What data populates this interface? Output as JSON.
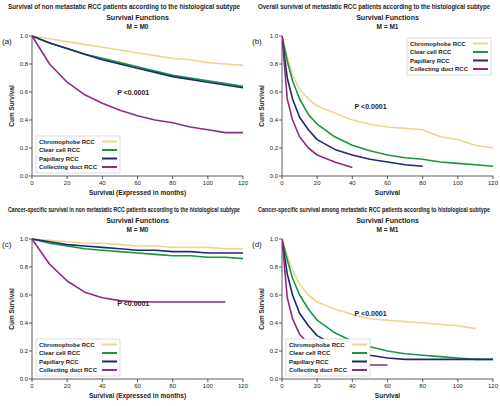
{
  "chart_data": [
    {
      "type": "line",
      "panel_label": "(a)",
      "title": "Survival of non metastatic RCC patients according to the histological subtype",
      "subtitle": "Survival Functions",
      "strata_label": "M = M0",
      "annotation": "P <0.0001",
      "x_label": "Survival (Expressed in months)",
      "y_label": "Cum Survival",
      "x": [
        0,
        10,
        20,
        30,
        40,
        50,
        60,
        70,
        80,
        90,
        100,
        110,
        120
      ],
      "series": [
        {
          "name": "Chromophobe RCC",
          "color": "#efd593",
          "values": [
            1.0,
            0.98,
            0.96,
            0.94,
            0.92,
            0.9,
            0.88,
            0.86,
            0.84,
            0.83,
            0.81,
            0.8,
            0.79
          ]
        },
        {
          "name": "Clear cell RCC",
          "color": "#1a9641",
          "values": [
            1.0,
            0.95,
            0.91,
            0.87,
            0.84,
            0.81,
            0.78,
            0.75,
            0.72,
            0.7,
            0.68,
            0.66,
            0.64
          ]
        },
        {
          "name": "Papillary RCC",
          "color": "#1c2a6e",
          "values": [
            1.0,
            0.95,
            0.91,
            0.87,
            0.83,
            0.8,
            0.77,
            0.74,
            0.71,
            0.69,
            0.67,
            0.65,
            0.63
          ]
        },
        {
          "name": "Collecting duct RCC",
          "color": "#8e2c80",
          "values": [
            1.0,
            0.8,
            0.67,
            0.58,
            0.52,
            0.47,
            0.43,
            0.4,
            0.38,
            0.35,
            0.33,
            0.31,
            0.31
          ]
        }
      ],
      "xlim": [
        0,
        120
      ],
      "xticks": [
        0,
        20,
        40,
        60,
        80,
        100,
        120
      ],
      "ylim": [
        0,
        1.0
      ],
      "yticks": [
        {
          "value": 0,
          "label": "0.0"
        },
        0.2,
        0.4,
        0.6,
        0.8,
        {
          "value": 1.0,
          "label": "1.0"
        }
      ],
      "grid": false,
      "legend": "lower left"
    },
    {
      "type": "line",
      "panel_label": "(b)",
      "title": "Overall survival of metastatic RCC patients according to the histological subtype",
      "subtitle": "Survival Functions",
      "strata_label": "M = M1",
      "annotation": "P <0.0001",
      "x_label": "Survival",
      "y_label": "Cum Survival",
      "x": [
        0,
        3,
        6,
        10,
        15,
        20,
        30,
        40,
        50,
        60,
        70,
        80,
        90,
        100,
        110,
        120
      ],
      "series": [
        {
          "name": "Chromophobe RCC",
          "color": "#efd593",
          "values": [
            1.0,
            0.85,
            0.72,
            0.62,
            0.55,
            0.5,
            0.45,
            0.4,
            0.37,
            0.35,
            0.34,
            0.33,
            0.28,
            0.26,
            0.22,
            0.2
          ]
        },
        {
          "name": "Clear cell RCC",
          "color": "#1a9641",
          "values": [
            1.0,
            0.82,
            0.68,
            0.55,
            0.44,
            0.37,
            0.28,
            0.22,
            0.18,
            0.15,
            0.13,
            0.12,
            0.1,
            0.09,
            0.08,
            0.07
          ]
        },
        {
          "name": "Papillary RCC",
          "color": "#1c2a6e",
          "values": [
            1.0,
            0.7,
            0.55,
            0.42,
            0.33,
            0.26,
            0.19,
            0.15,
            0.12,
            0.1,
            0.08,
            0.07,
            null,
            null,
            null,
            null
          ]
        },
        {
          "name": "Collecting duct RCC",
          "color": "#8e2c80",
          "values": [
            1.0,
            0.55,
            0.4,
            0.28,
            0.2,
            0.15,
            0.1,
            0.06,
            null,
            null,
            null,
            null,
            null,
            null,
            null,
            null
          ]
        }
      ],
      "xlim": [
        0,
        120
      ],
      "xticks": [
        0,
        20,
        40,
        60,
        80,
        100,
        120
      ],
      "ylim": [
        0,
        1.0
      ],
      "yticks": [
        {
          "value": 0,
          "label": "0.0"
        },
        0.2,
        0.4,
        0.6,
        0.8,
        {
          "value": 1.0,
          "label": "1.0"
        }
      ],
      "grid": false,
      "legend": "upper right"
    },
    {
      "type": "line",
      "panel_label": "(c)",
      "title": "Cancer-specific survival in non metastatic RCC patients according to the histological subtype",
      "subtitle": "Survival Functions",
      "strata_label": "M = M0",
      "annotation": "P <0.0001",
      "x_label": "Survival (Expressed in months)",
      "y_label": "Cum Survival",
      "x": [
        0,
        10,
        20,
        30,
        40,
        50,
        60,
        70,
        80,
        90,
        100,
        110,
        120
      ],
      "series": [
        {
          "name": "Chromophobe RCC",
          "color": "#efd593",
          "values": [
            1.0,
            0.99,
            0.98,
            0.97,
            0.97,
            0.96,
            0.95,
            0.95,
            0.94,
            0.94,
            0.94,
            0.93,
            0.93
          ]
        },
        {
          "name": "Clear cell RCC",
          "color": "#1a9641",
          "values": [
            1.0,
            0.97,
            0.95,
            0.93,
            0.92,
            0.91,
            0.9,
            0.89,
            0.88,
            0.88,
            0.87,
            0.87,
            0.86
          ]
        },
        {
          "name": "Papillary RCC",
          "color": "#1c2a6e",
          "values": [
            1.0,
            0.98,
            0.96,
            0.95,
            0.94,
            0.93,
            0.92,
            0.92,
            0.91,
            0.91,
            0.9,
            0.9,
            0.9
          ]
        },
        {
          "name": "Collecting duct RCC",
          "color": "#8e2c80",
          "values": [
            1.0,
            0.82,
            0.7,
            0.62,
            0.58,
            0.56,
            0.55,
            0.55,
            0.55,
            0.55,
            0.55,
            0.55,
            null
          ]
        }
      ],
      "xlim": [
        0,
        120
      ],
      "xticks": [
        0,
        20,
        40,
        60,
        80,
        100,
        120
      ],
      "ylim": [
        0,
        1.0
      ],
      "yticks": [
        {
          "value": 0,
          "label": "0.0"
        },
        0.2,
        0.4,
        0.6,
        0.8,
        {
          "value": 1.0,
          "label": "1.0"
        }
      ],
      "grid": false,
      "legend": "lower left"
    },
    {
      "type": "line",
      "panel_label": "(d)",
      "title": "Cancer-specific survival among metastatic RCC patients according to histological subtype",
      "subtitle": "Survival Functions",
      "strata_label": "M = M1",
      "annotation": "P <0.0001",
      "x_label": "Survival",
      "y_label": "Cum Survival",
      "x": [
        0,
        3,
        6,
        10,
        15,
        20,
        30,
        40,
        50,
        60,
        70,
        80,
        90,
        100,
        110,
        120
      ],
      "series": [
        {
          "name": "Chromophobe RCC",
          "color": "#efd593",
          "values": [
            1.0,
            0.88,
            0.78,
            0.68,
            0.6,
            0.55,
            0.5,
            0.46,
            0.43,
            0.42,
            0.41,
            0.4,
            0.39,
            0.38,
            0.36,
            null
          ]
        },
        {
          "name": "Clear cell RCC",
          "color": "#1a9641",
          "values": [
            1.0,
            0.85,
            0.72,
            0.6,
            0.5,
            0.42,
            0.33,
            0.27,
            0.23,
            0.2,
            0.18,
            0.17,
            0.16,
            0.15,
            0.14,
            0.14
          ]
        },
        {
          "name": "Papillary RCC",
          "color": "#1c2a6e",
          "values": [
            1.0,
            0.75,
            0.6,
            0.47,
            0.38,
            0.31,
            0.24,
            0.2,
            0.17,
            0.15,
            0.14,
            0.14,
            0.14,
            0.14,
            0.14,
            0.14
          ]
        },
        {
          "name": "Collecting duct RCC",
          "color": "#8e2c80",
          "values": [
            1.0,
            0.58,
            0.43,
            0.32,
            0.25,
            0.2,
            0.14,
            0.1,
            0.1,
            0.1,
            null,
            null,
            null,
            null,
            null,
            null
          ]
        }
      ],
      "xlim": [
        0,
        120
      ],
      "xticks": [
        0,
        20,
        40,
        60,
        80,
        100,
        120
      ],
      "ylim": [
        0,
        1.0
      ],
      "yticks": [
        {
          "value": 0,
          "label": "0.0"
        },
        0.2,
        0.4,
        0.6,
        0.8,
        {
          "value": 1.0,
          "label": "1.0"
        }
      ],
      "grid": false,
      "legend": "lower left"
    }
  ]
}
